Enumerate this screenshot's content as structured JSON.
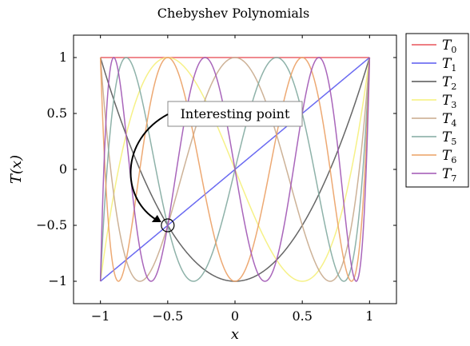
{
  "chart_data": {
    "type": "line",
    "title": "Chebyshev Polynomials",
    "xlabel": "x",
    "ylabel": "T(x)",
    "xlim": [
      -1.2,
      1.2
    ],
    "ylim": [
      -1.2,
      1.2
    ],
    "xticks": [
      -1,
      -0.5,
      0,
      0.5,
      1
    ],
    "yticks": [
      -1,
      -0.5,
      0,
      0.5,
      1
    ],
    "xtick_labels": [
      "−1",
      "−0.5",
      "0",
      "0.5",
      "1"
    ],
    "ytick_labels": [
      "−1",
      "−0.5",
      "0",
      "0.5",
      "1"
    ],
    "grid": false,
    "legend_position": "outside right",
    "series": [
      {
        "name": "T",
        "sub": "0",
        "order": 0,
        "color": "#e8535a"
      },
      {
        "name": "T",
        "sub": "1",
        "order": 1,
        "color": "#5a5af0"
      },
      {
        "name": "T",
        "sub": "2",
        "order": 2,
        "color": "#555555"
      },
      {
        "name": "T",
        "sub": "3",
        "order": 3,
        "color": "#f5f07a"
      },
      {
        "name": "T",
        "sub": "4",
        "order": 4,
        "color": "#c8aa8c"
      },
      {
        "name": "T",
        "sub": "5",
        "order": 5,
        "color": "#82aaa0"
      },
      {
        "name": "T",
        "sub": "6",
        "order": 6,
        "color": "#eba064"
      },
      {
        "name": "T",
        "sub": "7",
        "order": 7,
        "color": "#a055b4"
      }
    ],
    "annotation": {
      "text": "Interesting point",
      "point": [
        -0.5,
        -0.5
      ]
    }
  }
}
